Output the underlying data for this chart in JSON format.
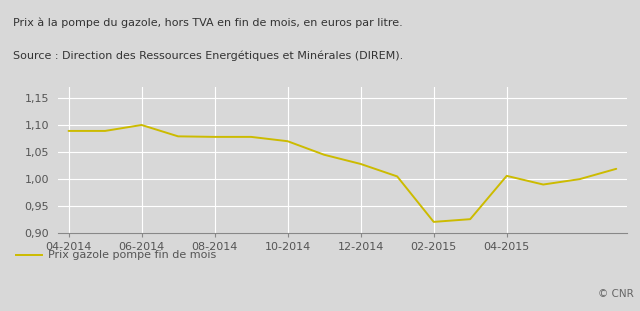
{
  "title_line1": "Prix à la pompe du gazole, hors TVA en fin de mois, en euros par litre.",
  "title_line2": "Source : Direction des Ressources Energétiques et Minérales (DIREM).",
  "watermark": "© CNR",
  "legend_label": "Prix gazole pompe fin de mois",
  "x_labels": [
    "04-2014",
    "06-2014",
    "08-2014",
    "10-2014",
    "12-2014",
    "02-2015",
    "04-2015"
  ],
  "x_tick_positions": [
    0,
    2,
    4,
    6,
    8,
    10,
    12
  ],
  "data_x": [
    0,
    1,
    2,
    3,
    4,
    5,
    6,
    7,
    8,
    9,
    10,
    11,
    12,
    13,
    14,
    15
  ],
  "data_y": [
    1.089,
    1.089,
    1.1,
    1.079,
    1.078,
    1.078,
    1.07,
    1.045,
    1.028,
    1.005,
    0.921,
    0.926,
    1.006,
    0.99,
    1.0,
    1.019
  ],
  "ylim": [
    0.9,
    1.17
  ],
  "yticks": [
    0.9,
    0.95,
    1.0,
    1.05,
    1.1,
    1.15
  ],
  "xlim": [
    -0.3,
    15.3
  ],
  "line_color": "#ccbb00",
  "fig_bg_color": "#d8d8d8",
  "top_bg_color": "#f0f0f0",
  "plot_bg_color": "#d8d8d8",
  "grid_color": "#ffffff",
  "title_color": "#333333",
  "tick_color": "#555555",
  "watermark_color": "#666666",
  "title_fontsize": 8.0,
  "tick_fontsize": 8.0,
  "legend_fontsize": 8.0,
  "watermark_fontsize": 7.5
}
